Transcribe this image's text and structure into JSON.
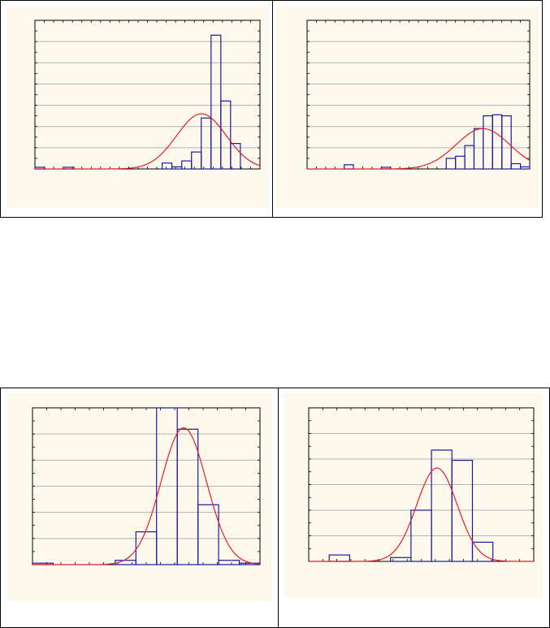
{
  "colors": {
    "bar_stroke": "#1a1aa0",
    "curve": "#e0202a",
    "grid": "#b4b4b4",
    "panel_bg": "#fdf8ec",
    "frame": "#000000"
  },
  "chart_data": [
    {
      "type": "bar",
      "overlay": "normal-curve",
      "title": "",
      "xlabel": "",
      "ylabel": "",
      "grid": true,
      "bins": 23,
      "ylim": [
        0,
        7
      ],
      "values": [
        0.08,
        0,
        0,
        0.08,
        0,
        0,
        0,
        0,
        0,
        0,
        0,
        0,
        0,
        0.28,
        0.1,
        0.38,
        0.8,
        2.4,
        6.3,
        3.2,
        1.2,
        0,
        0
      ],
      "curve": {
        "mean": 0.74,
        "sd": 0.11,
        "peak": 2.6
      }
    },
    {
      "type": "bar",
      "overlay": "normal-curve",
      "title": "",
      "xlabel": "",
      "ylabel": "",
      "grid": true,
      "bins": 24,
      "ylim": [
        0,
        7
      ],
      "values": [
        0,
        0,
        0,
        0,
        0.2,
        0,
        0,
        0,
        0.08,
        0,
        0,
        0,
        0,
        0,
        0,
        0.5,
        0.6,
        1.1,
        1.9,
        2.5,
        2.55,
        2.5,
        0.25,
        0.1
      ],
      "curve": {
        "mean": 0.79,
        "sd": 0.12,
        "peak": 1.9
      }
    },
    {
      "type": "bar",
      "overlay": "normal-curve",
      "title": "",
      "xlabel": "",
      "ylabel": "",
      "grid": true,
      "bins": 11,
      "ylim": [
        0,
        5.5
      ],
      "values": [
        0.05,
        0,
        0,
        0,
        0.15,
        1.15,
        5.5,
        4.75,
        2.1,
        0.15,
        0.05
      ],
      "curve": {
        "mean": 0.665,
        "sd": 0.1,
        "peak": 4.8
      }
    },
    {
      "type": "bar",
      "overlay": "normal-curve",
      "title": "",
      "xlabel": "",
      "ylabel": "",
      "grid": true,
      "bins": 11,
      "ylim": [
        0,
        6
      ],
      "values": [
        0,
        0.25,
        0,
        0,
        0.15,
        2.0,
        4.35,
        3.95,
        0.75,
        0,
        0
      ],
      "curve": {
        "mean": 0.57,
        "sd": 0.09,
        "peak": 3.65
      }
    }
  ]
}
